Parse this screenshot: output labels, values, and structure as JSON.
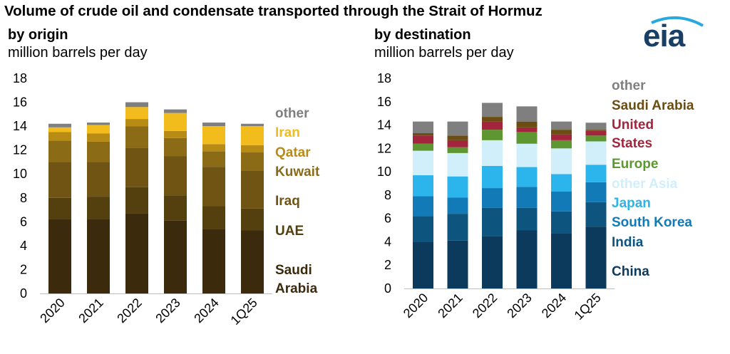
{
  "title": "Volume of crude oil and condensate transported through the Strait of Hormuz",
  "logo_text": "eia",
  "colors": {
    "logo": "#1a3f66"
  },
  "chart_data": [
    {
      "type": "bar",
      "stacked": true,
      "title": "by origin",
      "ylabel": "million barrels per day",
      "categories": [
        "2020",
        "2021",
        "2022",
        "2023",
        "2024",
        "1Q25"
      ],
      "ylim": [
        0,
        18
      ],
      "yticks": [
        0,
        2,
        4,
        6,
        8,
        10,
        12,
        14,
        16,
        18
      ],
      "series": [
        {
          "name": "Saudi Arabia",
          "label": "Saudi Arabia",
          "color": "#3b2a0c",
          "values": [
            6.2,
            6.2,
            6.7,
            6.1,
            5.4,
            5.3
          ]
        },
        {
          "name": "UAE",
          "label": "UAE",
          "color": "#54400f",
          "values": [
            1.8,
            1.9,
            2.2,
            2.1,
            1.9,
            1.8
          ]
        },
        {
          "name": "Iraq",
          "label": "Iraq",
          "color": "#6f5414",
          "values": [
            3.0,
            2.9,
            3.3,
            3.3,
            3.3,
            3.2
          ]
        },
        {
          "name": "Kuwait",
          "label": "Kuwait",
          "color": "#8c6b17",
          "values": [
            1.8,
            1.7,
            1.8,
            1.5,
            1.3,
            1.5
          ]
        },
        {
          "name": "Qatar",
          "label": "Qatar",
          "color": "#b88c14",
          "values": [
            0.7,
            0.7,
            0.6,
            0.6,
            0.6,
            0.6
          ]
        },
        {
          "name": "Iran",
          "label": "Iran",
          "color": "#f2bc1c",
          "values": [
            0.4,
            0.7,
            1.0,
            1.5,
            1.5,
            1.6
          ]
        },
        {
          "name": "other",
          "label": "other",
          "color": "#7f7f7f",
          "values": [
            0.3,
            0.2,
            0.4,
            0.3,
            0.3,
            0.2
          ]
        }
      ]
    },
    {
      "type": "bar",
      "stacked": true,
      "title": "by destination",
      "ylabel": "million barrels per day",
      "categories": [
        "2020",
        "2021",
        "2022",
        "2023",
        "2024",
        "1Q25"
      ],
      "ylim": [
        0,
        18
      ],
      "yticks": [
        0,
        2,
        4,
        6,
        8,
        10,
        12,
        14,
        16,
        18
      ],
      "series": [
        {
          "name": "China",
          "label": "China",
          "color": "#0c3a5c",
          "values": [
            4.0,
            4.1,
            4.5,
            5.0,
            4.7,
            5.3
          ]
        },
        {
          "name": "India",
          "label": "India",
          "color": "#0d557f",
          "values": [
            2.2,
            2.3,
            2.4,
            1.9,
            1.9,
            2.1
          ]
        },
        {
          "name": "South Korea",
          "label": "South Korea",
          "color": "#137ab8",
          "values": [
            1.7,
            1.4,
            1.7,
            1.8,
            1.7,
            1.7
          ]
        },
        {
          "name": "Japan",
          "label": "Japan",
          "color": "#2cb4ec",
          "values": [
            1.8,
            1.8,
            1.9,
            1.7,
            1.5,
            1.5
          ]
        },
        {
          "name": "other Asia",
          "label": "other Asia",
          "color": "#d0effb",
          "values": [
            2.1,
            2.0,
            2.2,
            2.0,
            2.2,
            2.0
          ]
        },
        {
          "name": "Europe",
          "label": "Europe",
          "color": "#5e9732",
          "values": [
            0.6,
            0.5,
            0.9,
            1.0,
            0.7,
            0.5
          ]
        },
        {
          "name": "United States",
          "label": "United States",
          "color": "#a3253d",
          "values": [
            0.7,
            0.6,
            0.7,
            0.4,
            0.5,
            0.4
          ]
        },
        {
          "name": "Saudi Arabia",
          "label": "Saudi Arabia",
          "color": "#6b4d12",
          "values": [
            0.2,
            0.4,
            0.4,
            0.5,
            0.4,
            0.1
          ]
        },
        {
          "name": "other",
          "label": "other",
          "color": "#7f7f7f",
          "values": [
            1.0,
            1.2,
            1.2,
            1.3,
            0.7,
            0.6
          ]
        }
      ]
    }
  ]
}
